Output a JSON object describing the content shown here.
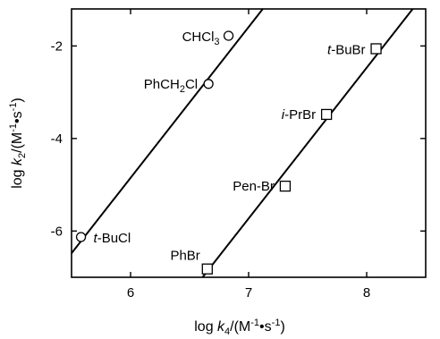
{
  "chart_data": {
    "type": "scatter",
    "xlabel_main": "log ",
    "xlabel_k": "k",
    "xlabel_sub": "4",
    "xlabel_unit_a": "/(M",
    "xlabel_exp1": "-1",
    "xlabel_dot": "•s",
    "xlabel_exp2": "-1",
    "xlabel_close": ")",
    "ylabel_main": "log ",
    "ylabel_k": "k",
    "ylabel_sub": "2",
    "ylabel_unit_a": "/(M",
    "ylabel_exp1": "-1",
    "ylabel_dot": "•s",
    "ylabel_exp2": "-1",
    "ylabel_close": ")",
    "xlim": [
      5.5,
      8.5
    ],
    "ylim": [
      -7,
      -1.2
    ],
    "xticks": [
      6,
      7,
      8
    ],
    "yticks": [
      -2,
      -4,
      -6
    ],
    "series": [
      {
        "marker": "circle",
        "points": [
          {
            "label": "CHCl",
            "label_sub": "3",
            "x": 6.83,
            "y": -1.78
          },
          {
            "label": "PhCH",
            "label_sub": "2",
            "label_rest": "Cl",
            "x": 6.66,
            "y": -2.82
          },
          {
            "label_italic": "t",
            "label": "-BuCl",
            "x": 5.58,
            "y": -6.13
          }
        ],
        "fit": {
          "x1": 5.5,
          "y1": -6.48,
          "x2": 7.12,
          "y2": -1.2
        }
      },
      {
        "marker": "square",
        "points": [
          {
            "label_italic": "t",
            "label": "-BuBr",
            "x": 8.08,
            "y": -2.06
          },
          {
            "label_italic": "i",
            "label": "-PrBr",
            "x": 7.66,
            "y": -3.48
          },
          {
            "label": "Pen-Br",
            "x": 7.31,
            "y": -5.03
          },
          {
            "label": "PhBr",
            "x": 6.65,
            "y": -6.82
          }
        ],
        "fit": {
          "x1": 6.61,
          "y1": -7.0,
          "x2": 8.39,
          "y2": -1.2
        }
      }
    ]
  }
}
